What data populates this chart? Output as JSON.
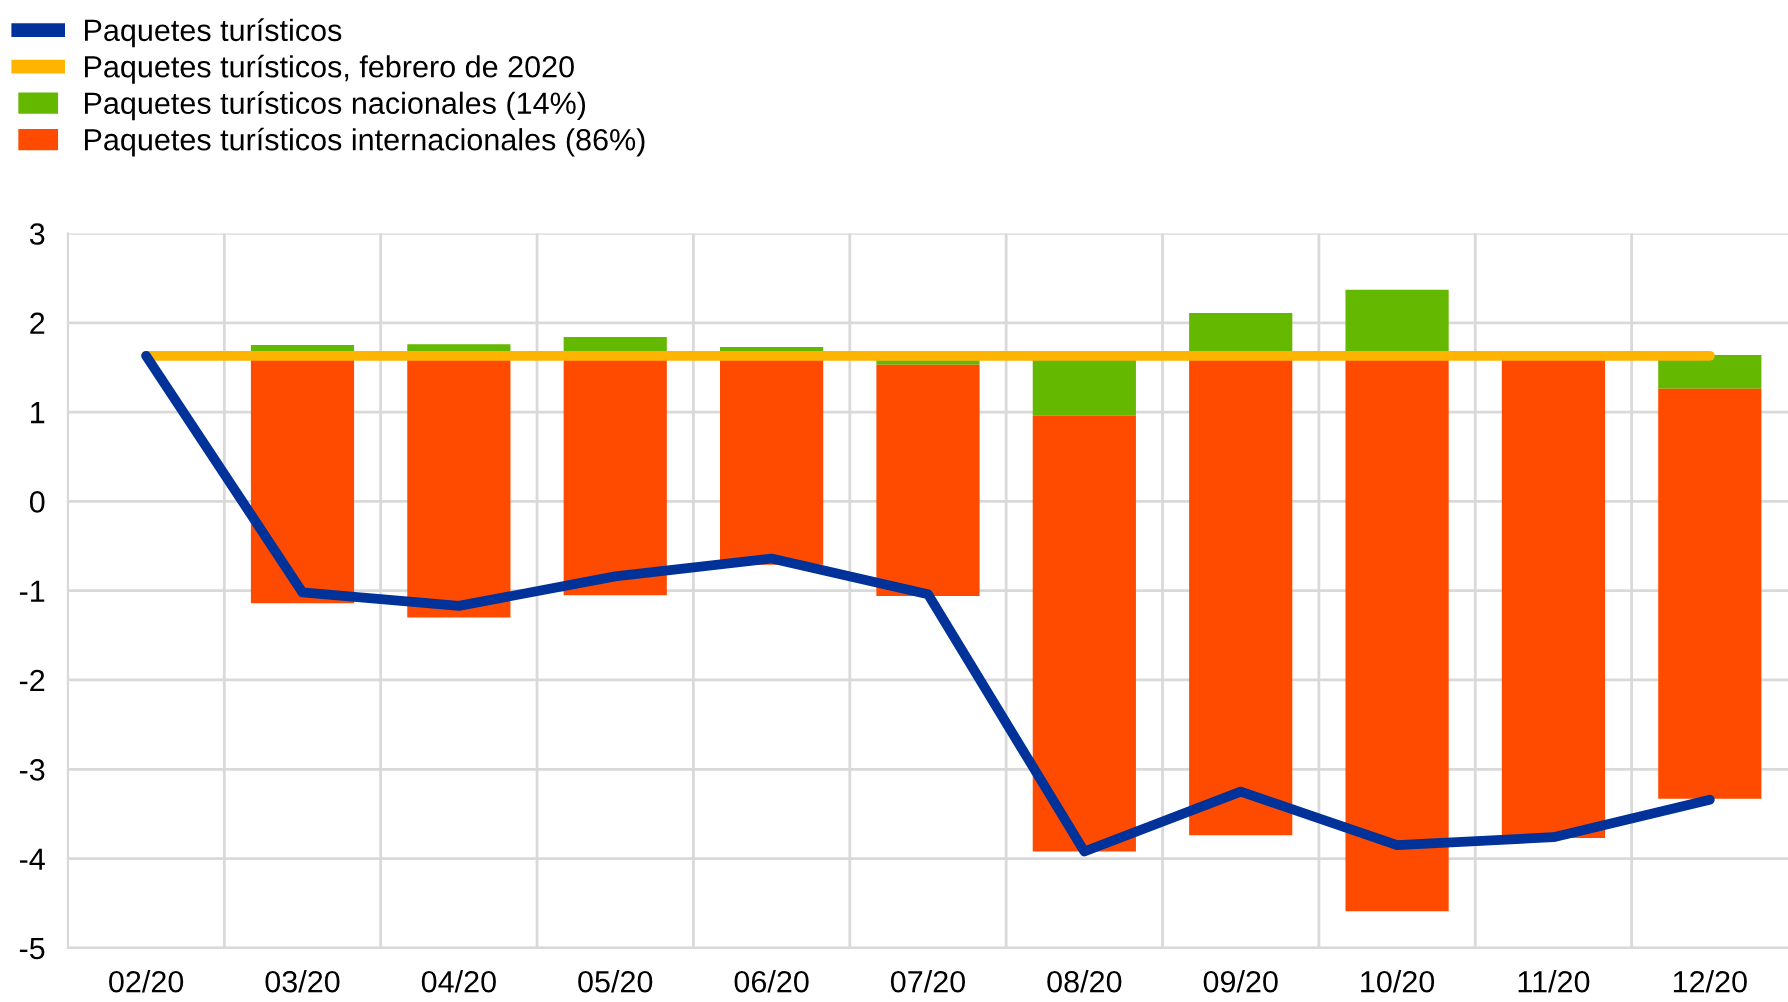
{
  "chart_data": {
    "type": "bar",
    "categories": [
      "02/20",
      "03/20",
      "04/20",
      "05/20",
      "06/20",
      "07/20",
      "08/20",
      "09/20",
      "10/20",
      "11/20",
      "12/20"
    ],
    "series": [
      {
        "name": "Paquetes turísticos",
        "type": "line",
        "color": "#003299",
        "values": [
          1.63,
          -1.02,
          -1.17,
          -0.84,
          -0.64,
          -1.04,
          -3.92,
          -3.25,
          -3.85,
          -3.76,
          -3.34
        ]
      },
      {
        "name": "Paquetes turísticos, febrero de 2020",
        "type": "line",
        "color": "#ffb400",
        "values": [
          1.63,
          1.63,
          1.63,
          1.63,
          1.63,
          1.63,
          1.63,
          1.63,
          1.63,
          1.63,
          1.63
        ]
      },
      {
        "name": "Paquetes turísticos nacionales (14%)",
        "color": "#65b800",
        "base": [
          null,
          1.63,
          1.63,
          1.63,
          1.63,
          1.53,
          0.96,
          1.63,
          1.63,
          null,
          1.26
        ],
        "values": [
          null,
          0.12,
          0.13,
          0.21,
          0.1,
          0.06,
          0.67,
          0.48,
          0.74,
          null,
          0.38
        ]
      },
      {
        "name": "Paquetes turísticos internacionales (86%)",
        "color": "#ff4b00",
        "base": [
          null,
          -1.14,
          -1.3,
          -1.05,
          -0.71,
          -1.06,
          -3.92,
          -3.74,
          -4.59,
          -3.77,
          -3.33
        ],
        "values": [
          null,
          2.77,
          2.93,
          2.68,
          2.34,
          2.59,
          4.88,
          5.37,
          6.22,
          5.4,
          4.59
        ]
      }
    ],
    "ylim": [
      -5,
      3
    ],
    "yticks": [
      -5,
      -4,
      -3,
      -2,
      -1,
      0,
      1,
      2,
      3
    ],
    "grid": true,
    "legend": "top left"
  }
}
